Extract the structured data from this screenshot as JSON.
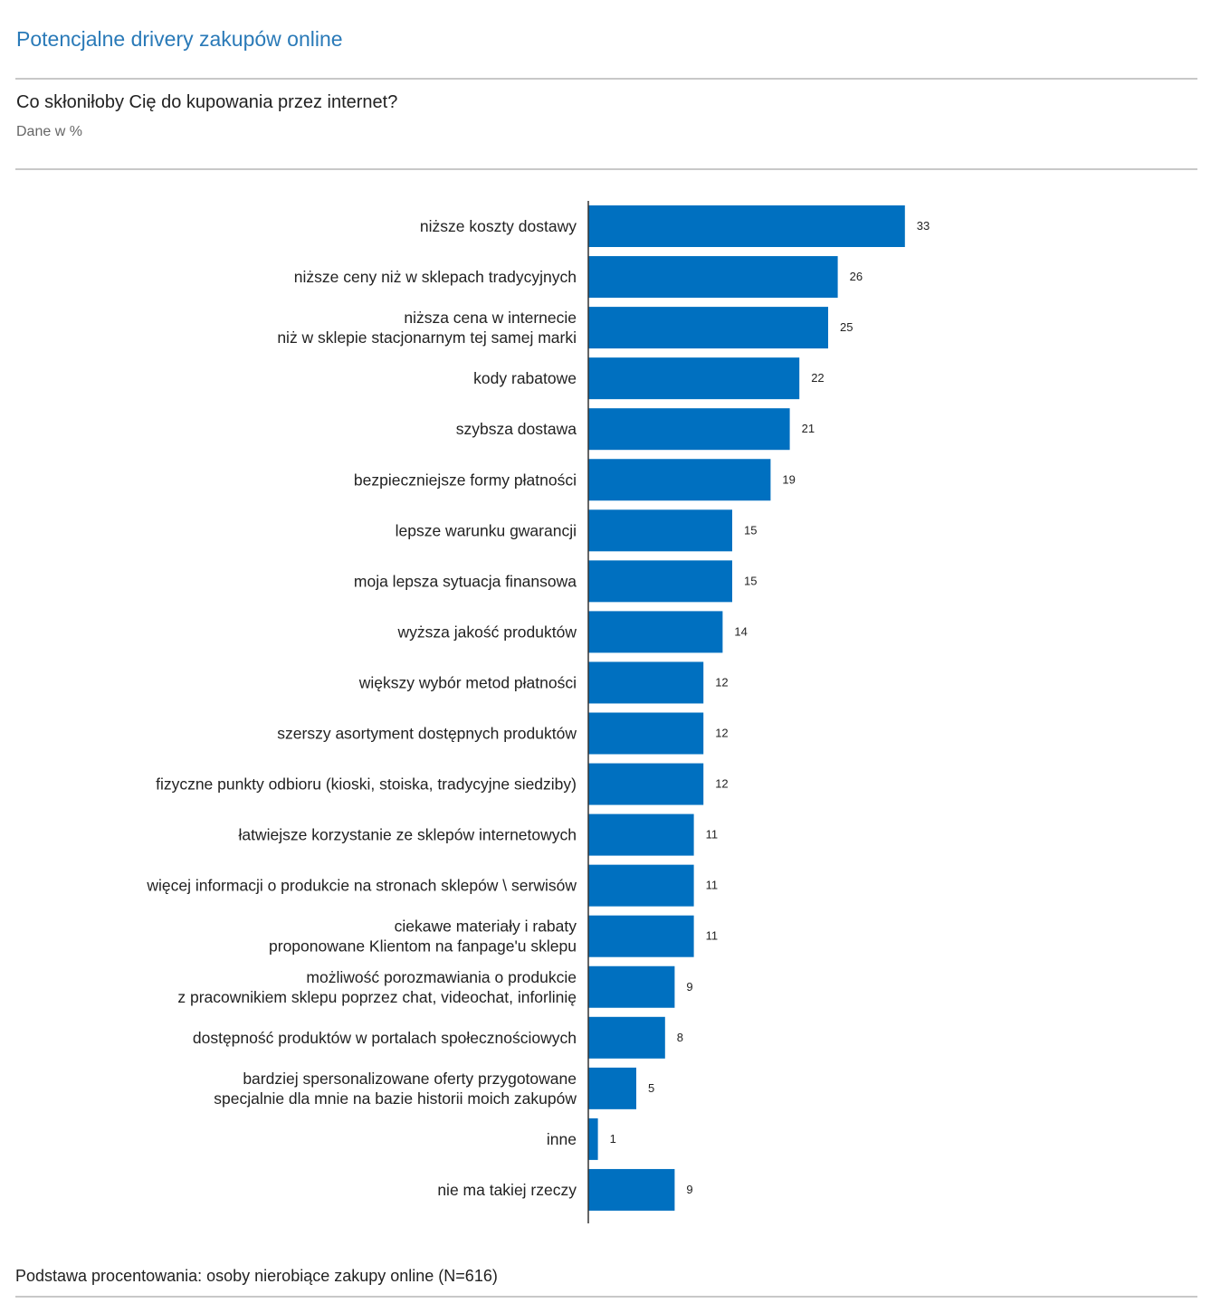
{
  "header": {
    "title": "Potencjalne drivery zakupów online",
    "question": "Co skłoniłoby Cię do kupowania przez internet?",
    "unit": "Dane w %"
  },
  "footer": {
    "note": "Podstawa procentowania: osoby nierobiące zakupy online (N=616)"
  },
  "chart_data": {
    "type": "bar",
    "orientation": "horizontal",
    "title": "Co skłoniłoby Cię do kupowania przez internet?",
    "subtitle": "Dane w %",
    "bar_color": "#0070C0",
    "grid": false,
    "data_labels": true,
    "xlim": [
      0,
      35
    ],
    "categories": [
      "niższe koszty dostawy",
      "niższe ceny niż w sklepach tradycyjnych",
      "niższa cena w internecie\nniż w sklepie stacjonarnym tej samej marki",
      "kody rabatowe",
      "szybsza dostawa",
      "bezpieczniejsze formy płatności",
      "lepsze warunku gwarancji",
      "moja lepsza sytuacja finansowa",
      "wyższa jakość produktów",
      "większy wybór metod płatności",
      "szerszy asortyment dostępnych produktów",
      "fizyczne punkty odbioru (kioski, stoiska, tradycyjne siedziby)",
      "łatwiejsze korzystanie ze sklepów internetowych",
      "więcej informacji o produkcie na stronach sklepów \\ serwisów",
      "ciekawe materiały i rabaty\nproponowane Klientom na fanpage'u sklepu",
      "możliwość porozmawiania o produkcie\nz pracownikiem sklepu poprzez chat, videochat, inforlinię",
      "dostępność produktów w portalach społecznościowych",
      "bardziej spersonalizowane oferty przygotowane\nspecjalnie dla mnie na bazie historii moich zakupów",
      "inne",
      "nie ma takiej rzeczy"
    ],
    "values": [
      33,
      26,
      25,
      22,
      21,
      19,
      15,
      15,
      14,
      12,
      12,
      12,
      11,
      11,
      11,
      9,
      8,
      5,
      1,
      9
    ]
  }
}
